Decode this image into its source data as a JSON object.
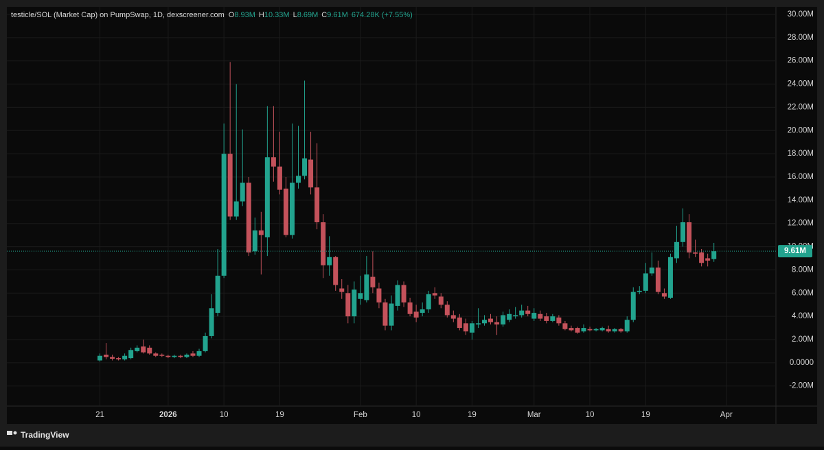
{
  "header": {
    "title": "testicle/SOL (Market Cap) on PumpSwap, 1D, dexscreener.com",
    "o_key": "O",
    "o_val": "8.93M",
    "h_key": "H",
    "h_val": "10.33M",
    "l_key": "L",
    "l_val": "8.69M",
    "c_key": "C",
    "c_val": "9.61M",
    "change": "674.28K (+7.55%)"
  },
  "footer": {
    "brand": "TradingView"
  },
  "chart_data": {
    "type": "candlestick",
    "up_color": "#22a38e",
    "down_color": "#c4525b",
    "grid": true,
    "xlim": [
      "2025-12-06",
      "2026-04-09"
    ],
    "ylim": [
      -3730000.0,
      30650000.0
    ],
    "xticks": [
      {
        "value": "2025-12-21",
        "label": "21"
      },
      {
        "value": "2026-01-01",
        "label": "2026"
      },
      {
        "value": "2026-01-10",
        "label": "10"
      },
      {
        "value": "2026-01-19",
        "label": "19"
      },
      {
        "value": "2026-02-01",
        "label": "Feb"
      },
      {
        "value": "2026-02-10",
        "label": "10"
      },
      {
        "value": "2026-02-19",
        "label": "19"
      },
      {
        "value": "2026-03-01",
        "label": "Mar"
      },
      {
        "value": "2026-03-10",
        "label": "10"
      },
      {
        "value": "2026-03-19",
        "label": "19"
      },
      {
        "value": "2026-04-01",
        "label": "Apr"
      }
    ],
    "yticks": [
      {
        "value": -2000000.0,
        "label": "-2.00M"
      },
      {
        "value": 0,
        "label": "0.0000"
      },
      {
        "value": 2000000.0,
        "label": "2.00M"
      },
      {
        "value": 4000000.0,
        "label": "4.00M"
      },
      {
        "value": 6000000.0,
        "label": "6.00M"
      },
      {
        "value": 8000000.0,
        "label": "8.00M"
      },
      {
        "value": 10000000.0,
        "label": "10.00M"
      },
      {
        "value": 12000000.0,
        "label": "12.00M"
      },
      {
        "value": 14000000.0,
        "label": "14.00M"
      },
      {
        "value": 16000000.0,
        "label": "16.00M"
      },
      {
        "value": 18000000.0,
        "label": "18.00M"
      },
      {
        "value": 20000000.0,
        "label": "20.00M"
      },
      {
        "value": 22000000.0,
        "label": "22.00M"
      },
      {
        "value": 24000000.0,
        "label": "24.00M"
      },
      {
        "value": 26000000.0,
        "label": "26.00M"
      },
      {
        "value": 28000000.0,
        "label": "28.00M"
      },
      {
        "value": 30000000.0,
        "label": "30.00M"
      }
    ],
    "last_price": {
      "value": 9610000.0,
      "label": "9.61M"
    },
    "x": [
      "2025-12-21",
      "2025-12-22",
      "2025-12-23",
      "2025-12-24",
      "2025-12-25",
      "2025-12-26",
      "2025-12-27",
      "2025-12-28",
      "2025-12-29",
      "2025-12-30",
      "2025-12-31",
      "2026-01-01",
      "2026-01-02",
      "2026-01-03",
      "2026-01-04",
      "2026-01-05",
      "2026-01-06",
      "2026-01-07",
      "2026-01-08",
      "2026-01-09",
      "2026-01-10",
      "2026-01-11",
      "2026-01-12",
      "2026-01-13",
      "2026-01-14",
      "2026-01-15",
      "2026-01-16",
      "2026-01-17",
      "2026-01-18",
      "2026-01-19",
      "2026-01-20",
      "2026-01-21",
      "2026-01-22",
      "2026-01-23",
      "2026-01-24",
      "2026-01-25",
      "2026-01-26",
      "2026-01-27",
      "2026-01-28",
      "2026-01-29",
      "2026-01-30",
      "2026-01-31",
      "2026-02-01",
      "2026-02-02",
      "2026-02-03",
      "2026-02-04",
      "2026-02-05",
      "2026-02-06",
      "2026-02-07",
      "2026-02-08",
      "2026-02-09",
      "2026-02-10",
      "2026-02-11",
      "2026-02-12",
      "2026-02-13",
      "2026-02-14",
      "2026-02-15",
      "2026-02-16",
      "2026-02-17",
      "2026-02-18",
      "2026-02-19",
      "2026-02-20",
      "2026-02-21",
      "2026-02-22",
      "2026-02-23",
      "2026-02-24",
      "2026-02-25",
      "2026-02-26",
      "2026-02-27",
      "2026-02-28",
      "2026-03-01",
      "2026-03-02",
      "2026-03-03",
      "2026-03-04",
      "2026-03-05",
      "2026-03-06",
      "2026-03-07",
      "2026-03-08",
      "2026-03-09",
      "2026-03-10",
      "2026-03-11",
      "2026-03-12",
      "2026-03-13",
      "2026-03-14",
      "2026-03-15",
      "2026-03-16",
      "2026-03-17",
      "2026-03-18",
      "2026-03-19",
      "2026-03-20",
      "2026-03-21",
      "2026-03-22",
      "2026-03-23",
      "2026-03-24",
      "2026-03-25",
      "2026-03-26",
      "2026-03-27",
      "2026-03-28",
      "2026-03-29",
      "2026-03-30"
    ],
    "open": [
      200000.0,
      700000.0,
      500000.0,
      400000.0,
      300000.0,
      400000.0,
      1000000.0,
      1400000.0,
      1300000.0,
      800000.0,
      700000.0,
      600000.0,
      500000.0,
      600000.0,
      500000.0,
      800000.0,
      600000.0,
      1000000.0,
      2300000.0,
      4300000.0,
      7500000.0,
      18000000.0,
      12600000.0,
      13900000.0,
      15500000.0,
      9600000.0,
      11400000.0,
      10800000.0,
      17700000.0,
      16900000.0,
      15000000.0,
      11000000.0,
      15500000.0,
      16100000.0,
      17500000.0,
      15100000.0,
      12100000.0,
      8400000.0,
      9100000.0,
      6400000.0,
      6000000.0,
      4000000.0,
      5500000.0,
      5400000.0,
      7400000.0,
      6400000.0,
      5200000.0,
      3200000.0,
      4900000.0,
      6700000.0,
      5200000.0,
      4400000.0,
      4300000.0,
      4600000.0,
      6000000.0,
      5700000.0,
      5000000.0,
      4100000.0,
      3900000.0,
      3400000.0,
      2600000.0,
      3300000.0,
      3400000.0,
      3800000.0,
      3500000.0,
      3300000.0,
      3700000.0,
      4000000.0,
      4100000.0,
      4500000.0,
      3800000.0,
      4200000.0,
      4000000.0,
      3600000.0,
      3900000.0,
      3400000.0,
      3000000.0,
      3000000.0,
      2700000.0,
      2900000.0,
      2800000.0,
      2800000.0,
      2900000.0,
      2700000.0,
      2900000.0,
      2700000.0,
      3700000.0,
      6100000.0,
      6200000.0,
      7700000.0,
      8200000.0,
      6000000.0,
      5600000.0,
      9000000.0,
      10400000.0,
      12100000.0,
      9500000.0,
      9500000.0,
      9000000.0,
      8930000.0
    ],
    "high": [
      800000.0,
      1700000.0,
      700000.0,
      500000.0,
      800000.0,
      1300000.0,
      1500000.0,
      2000000.0,
      1500000.0,
      900000.0,
      800000.0,
      700000.0,
      700000.0,
      700000.0,
      800000.0,
      1000000.0,
      1200000.0,
      2600000.0,
      5900000.0,
      9800000.0,
      20600000.0,
      25900000.0,
      24000000.0,
      20100000.0,
      16000000.0,
      12500000.0,
      13000000.0,
      22100000.0,
      22100000.0,
      19900000.0,
      16000000.0,
      20600000.0,
      20400000.0,
      24300000.0,
      19900000.0,
      18900000.0,
      12800000.0,
      10900000.0,
      9200000.0,
      7200000.0,
      6700000.0,
      7000000.0,
      7500000.0,
      9200000.0,
      9600000.0,
      6900000.0,
      5500000.0,
      5800000.0,
      7100000.0,
      7000000.0,
      5600000.0,
      5000000.0,
      5200000.0,
      6200000.0,
      6500000.0,
      6000000.0,
      5300000.0,
      4500000.0,
      4200000.0,
      3800000.0,
      3600000.0,
      4700000.0,
      4100000.0,
      4200000.0,
      4000000.0,
      4400000.0,
      4600000.0,
      4800000.0,
      5000000.0,
      4900000.0,
      4700000.0,
      4500000.0,
      4300000.0,
      4200000.0,
      4100000.0,
      3600000.0,
      3200000.0,
      3100000.0,
      3300000.0,
      3100000.0,
      3000000.0,
      3100000.0,
      3200000.0,
      3000000.0,
      3000000.0,
      4000000.0,
      6500000.0,
      6600000.0,
      8600000.0,
      9500000.0,
      8800000.0,
      6400000.0,
      9400000.0,
      11800000.0,
      13300000.0,
      12800000.0,
      10600000.0,
      9800000.0,
      9400000.0,
      10330000.0
    ],
    "low": [
      100000.0,
      300000.0,
      200000.0,
      200000.0,
      200000.0,
      300000.0,
      900000.0,
      800000.0,
      700000.0,
      500000.0,
      500000.0,
      400000.0,
      400000.0,
      400000.0,
      400000.0,
      500000.0,
      500000.0,
      900000.0,
      2100000.0,
      4000000.0,
      7300000.0,
      12300000.0,
      12300000.0,
      13500000.0,
      9200000.0,
      9300000.0,
      7600000.0,
      9200000.0,
      15600000.0,
      14500000.0,
      10800000.0,
      10700000.0,
      15000000.0,
      15800000.0,
      14500000.0,
      11500000.0,
      7300000.0,
      7500000.0,
      6200000.0,
      5500000.0,
      3400000.0,
      3400000.0,
      5000000.0,
      5200000.0,
      6000000.0,
      4700000.0,
      2800000.0,
      2800000.0,
      4500000.0,
      4800000.0,
      4000000.0,
      3500000.0,
      4000000.0,
      4300000.0,
      5500000.0,
      4700000.0,
      3900000.0,
      3500000.0,
      2800000.0,
      2400000.0,
      2000000.0,
      3000000.0,
      3200000.0,
      3300000.0,
      2400000.0,
      3100000.0,
      3500000.0,
      3800000.0,
      3900000.0,
      4000000.0,
      3600000.0,
      3600000.0,
      3400000.0,
      3500000.0,
      3200000.0,
      2800000.0,
      2700000.0,
      2500000.0,
      2600000.0,
      2700000.0,
      2700000.0,
      2700000.0,
      2600000.0,
      2600000.0,
      2600000.0,
      2600000.0,
      3500000.0,
      5900000.0,
      6000000.0,
      7500000.0,
      5900000.0,
      5500000.0,
      5500000.0,
      8600000.0,
      10000000.0,
      9000000.0,
      9100000.0,
      8300000.0,
      8300000.0,
      8690000.0
    ],
    "close": [
      600000.0,
      500000.0,
      350000.0,
      300000.0,
      600000.0,
      1100000.0,
      1300000.0,
      900000.0,
      800000.0,
      600000.0,
      600000.0,
      500000.0,
      600000.0,
      500000.0,
      700000.0,
      600000.0,
      1000000.0,
      2300000.0,
      4700000.0,
      7500000.0,
      18000000.0,
      12600000.0,
      13900000.0,
      15500000.0,
      9500000.0,
      11400000.0,
      11000000.0,
      17700000.0,
      16900000.0,
      14900000.0,
      11000000.0,
      15500000.0,
      16100000.0,
      17600000.0,
      15100000.0,
      12100000.0,
      8400000.0,
      9100000.0,
      6700000.0,
      6100000.0,
      4000000.0,
      6300000.0,
      6000000.0,
      7600000.0,
      6500000.0,
      5200000.0,
      3200000.0,
      5100000.0,
      6700000.0,
      5200000.0,
      4200000.0,
      3900000.0,
      4600000.0,
      5900000.0,
      5800000.0,
      5000000.0,
      4100000.0,
      3800000.0,
      3000000.0,
      2700000.0,
      3400000.0,
      3400000.0,
      3700000.0,
      3500000.0,
      3300000.0,
      4100000.0,
      4200000.0,
      4100000.0,
      4500000.0,
      4200000.0,
      4300000.0,
      3800000.0,
      3600000.0,
      4000000.0,
      3400000.0,
      2900000.0,
      2800000.0,
      2600000.0,
      3000000.0,
      2800000.0,
      2900000.0,
      3000000.0,
      2700000.0,
      2900000.0,
      2700000.0,
      3700000.0,
      6100000.0,
      6200000.0,
      7700000.0,
      8200000.0,
      6100000.0,
      5700000.0,
      9100000.0,
      10400000.0,
      12100000.0,
      9500000.0,
      9400000.0,
      8600000.0,
      8800000.0,
      9610000.0
    ]
  }
}
